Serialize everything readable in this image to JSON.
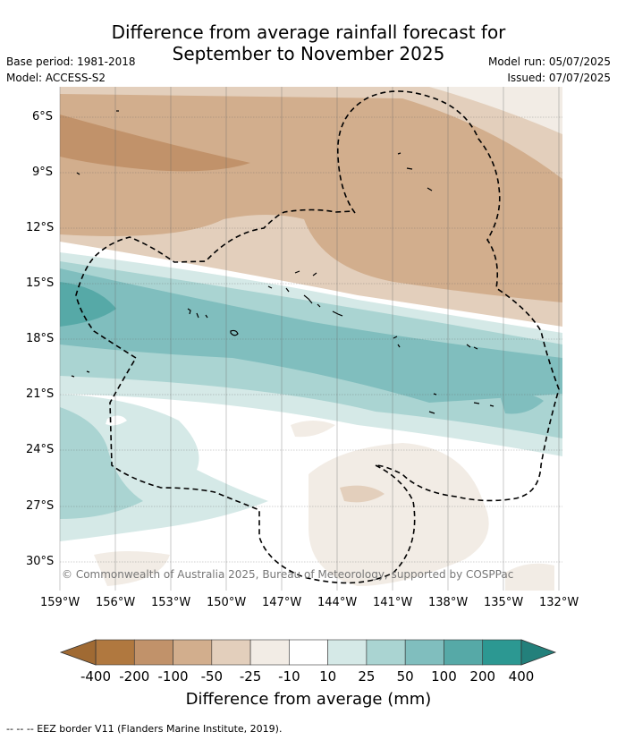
{
  "title_line1": "Difference from average rainfall forecast for",
  "title_line2": "September to November 2025",
  "base_period": "Base period: 1981-2018",
  "model": "Model: ACCESS-S2",
  "model_run": "Model run: 05/07/2025",
  "issued": "Issued: 07/07/2025",
  "copyright": "© Commonwealth of Australia 2025, Bureau of Meteorology, supported by COSPPac",
  "lat_labels": [
    "6°S",
    "9°S",
    "12°S",
    "15°S",
    "18°S",
    "21°S",
    "24°S",
    "27°S",
    "30°S"
  ],
  "lon_labels": [
    "159°W",
    "156°W",
    "153°W",
    "150°W",
    "147°W",
    "144°W",
    "141°W",
    "138°W",
    "135°W",
    "132°W"
  ],
  "colorbar": {
    "ticks": [
      "-400",
      "-200",
      "-100",
      "-50",
      "-25",
      "-10",
      "10",
      "25",
      "50",
      "100",
      "200",
      "400"
    ],
    "colors": [
      "#b0783f",
      "#c1926a",
      "#d2ae8d",
      "#e3cfbc",
      "#f2ece5",
      "#ffffff",
      "#d5e9e7",
      "#aad4d2",
      "#80bebe",
      "#56a9a7",
      "#2c9892"
    ],
    "ext_low": "#a06a33",
    "ext_high": "#23807b",
    "label": "Difference from average (mm)"
  },
  "footer": "--  --  -- EEZ border V11 (Flanders Marine Institute, 2019)."
}
